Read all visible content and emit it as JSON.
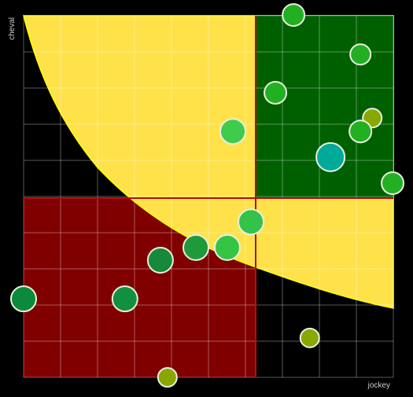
{
  "chart_data": {
    "type": "scatter",
    "x_label": "jockey",
    "y_label": "cheval",
    "xlim": [
      0,
      10
    ],
    "ylim": [
      0,
      10
    ],
    "xticks": [
      0,
      1,
      2,
      3,
      4,
      5,
      6,
      7,
      8,
      9,
      10
    ],
    "yticks": [
      0,
      1,
      2,
      3,
      4,
      5,
      6,
      7,
      8,
      9,
      10
    ],
    "grid": true,
    "x": [
      7.3,
      9.11,
      6.81,
      9.43,
      9.11,
      5.66,
      8.3,
      9.98,
      6.15,
      4.66,
      5.51,
      3.7,
      0,
      2.74,
      7.74,
      3.89
    ],
    "y": [
      10.02,
      8.93,
      7.87,
      7.17,
      6.8,
      6.8,
      6.09,
      5.37,
      4.3,
      3.59,
      3.59,
      3.24,
      2.17,
      2.17,
      1.09,
      0
    ],
    "sizes": [
      14,
      13,
      14,
      12,
      14,
      16,
      18,
      14,
      16,
      16,
      16,
      16,
      16,
      16,
      12,
      12
    ],
    "colors": [
      "#22b022",
      "#22b022",
      "#22b022",
      "#88a800",
      "#22b022",
      "#3fcc4a",
      "#00aa99",
      "#22b022",
      "#33c24a",
      "#1f9a3a",
      "#36c444",
      "#17893a",
      "#0a8a3a",
      "#119040",
      "#88a800",
      "#88a800"
    ]
  }
}
